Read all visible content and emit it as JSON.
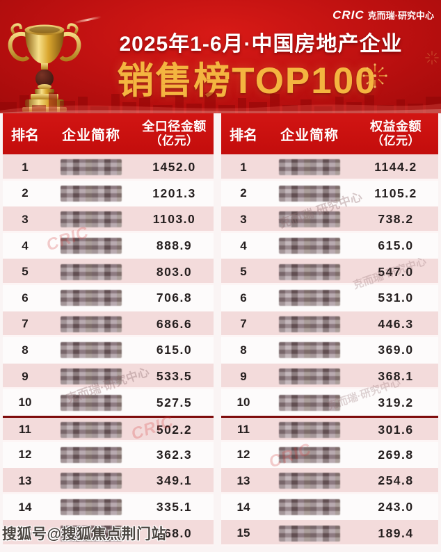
{
  "banner": {
    "brand_cric": "CRIC",
    "brand_suffix": "克而瑞·研究中心",
    "title_line1": "2025年1-6月·中国房地产企业",
    "title_line2": "销售榜TOP100"
  },
  "chart_data": [
    {
      "type": "table",
      "columns": [
        "排名",
        "企业简称",
        "全口径金额（亿元）"
      ],
      "header": {
        "rank": "排名",
        "company": "企业简称",
        "amount_line1": "全口径金额",
        "amount_line2": "（亿元）"
      },
      "company_names_censored": true,
      "divider_after_rank": 10,
      "rows": [
        {
          "rank": "1",
          "amount": "1452.0"
        },
        {
          "rank": "2",
          "amount": "1201.3"
        },
        {
          "rank": "3",
          "amount": "1103.0"
        },
        {
          "rank": "4",
          "amount": "888.9"
        },
        {
          "rank": "5",
          "amount": "803.0"
        },
        {
          "rank": "6",
          "amount": "706.8"
        },
        {
          "rank": "7",
          "amount": "686.6"
        },
        {
          "rank": "8",
          "amount": "615.0"
        },
        {
          "rank": "9",
          "amount": "533.5"
        },
        {
          "rank": "10",
          "amount": "527.5"
        },
        {
          "rank": "11",
          "amount": "502.2"
        },
        {
          "rank": "12",
          "amount": "362.3"
        },
        {
          "rank": "13",
          "amount": "349.1"
        },
        {
          "rank": "14",
          "amount": "335.1"
        },
        {
          "rank": "15",
          "amount": "268.0"
        }
      ]
    },
    {
      "type": "table",
      "columns": [
        "排名",
        "企业简称",
        "权益金额（亿元）"
      ],
      "header": {
        "rank": "排名",
        "company": "企业简称",
        "amount_line1": "权益金额",
        "amount_line2": "（亿元）"
      },
      "company_names_censored": true,
      "divider_after_rank": 10,
      "rows": [
        {
          "rank": "1",
          "amount": "1144.2"
        },
        {
          "rank": "2",
          "amount": "1105.2"
        },
        {
          "rank": "3",
          "amount": "738.2"
        },
        {
          "rank": "4",
          "amount": "615.0"
        },
        {
          "rank": "5",
          "amount": "547.0"
        },
        {
          "rank": "6",
          "amount": "531.0"
        },
        {
          "rank": "7",
          "amount": "446.3"
        },
        {
          "rank": "8",
          "amount": "369.0"
        },
        {
          "rank": "9",
          "amount": "368.1"
        },
        {
          "rank": "10",
          "amount": "319.2"
        },
        {
          "rank": "11",
          "amount": "301.6"
        },
        {
          "rank": "12",
          "amount": "269.8"
        },
        {
          "rank": "13",
          "amount": "254.8"
        },
        {
          "rank": "14",
          "amount": "243.0"
        },
        {
          "rank": "15",
          "amount": "189.4"
        }
      ]
    }
  ],
  "watermarks": {
    "diagonal_text": "克而瑞·研究中心",
    "diagonal_cric": "CRIC",
    "sohu_credit": "搜狐号@搜狐焦点荆门站"
  },
  "colors": {
    "banner_red": "#bc1010",
    "table_header_red": "#c70f0e",
    "row_pink": "#f3dbdb",
    "row_white": "#fdfbfb",
    "gold": "#f4b540",
    "divider_red": "#7e0b0b",
    "text_dark": "#241e1e"
  }
}
